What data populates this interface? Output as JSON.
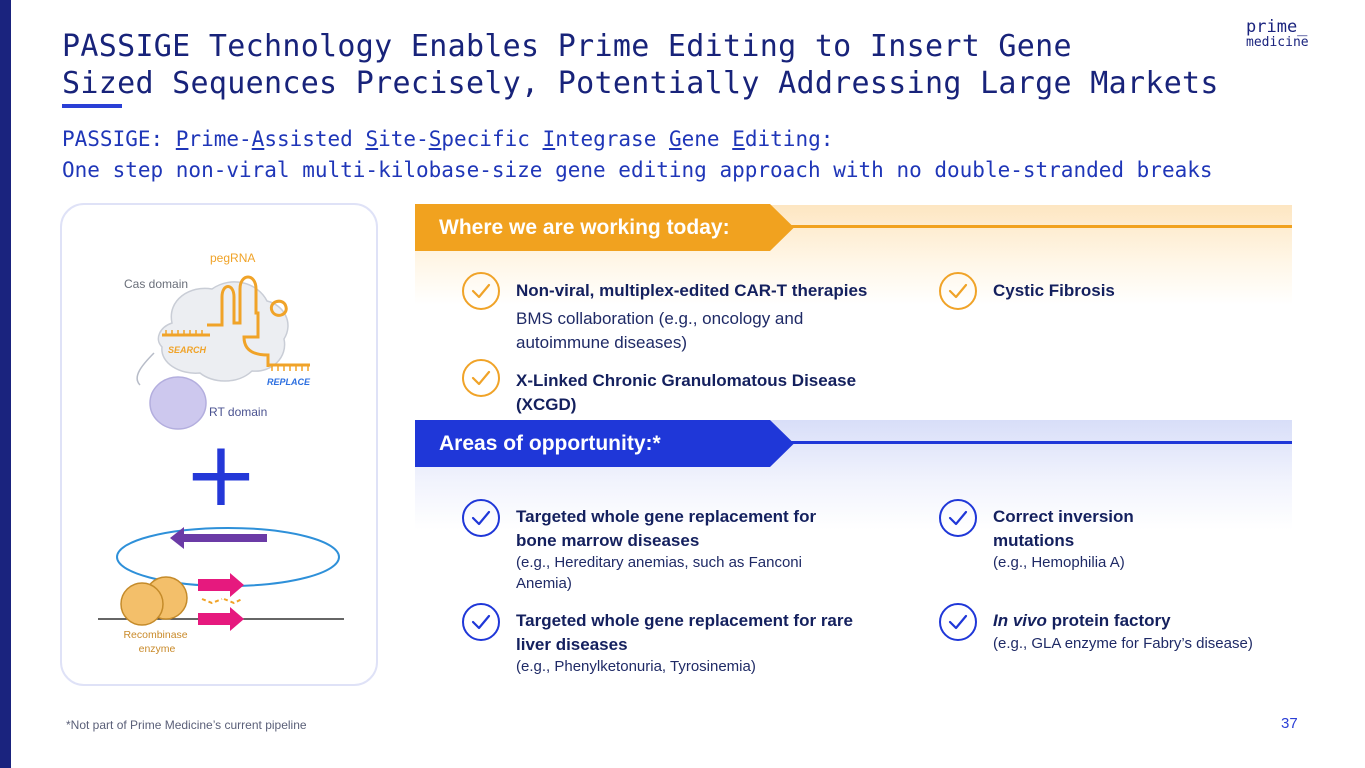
{
  "title": {
    "line1": "PASSIGE Technology Enables Prime Editing to Insert Gene",
    "line2": "Sized Sequences Precisely, Potentially Addressing Large Markets"
  },
  "logo": {
    "line1": "prime_",
    "line2": "medicine"
  },
  "subtitle": {
    "line1_parts": [
      "PASSIGE: ",
      "P",
      "rime-",
      "A",
      "ssisted ",
      "S",
      "ite-",
      "S",
      "pecific ",
      "I",
      "ntegrase ",
      "G",
      "ene ",
      "E",
      "diting:"
    ],
    "line2": "One step non-viral multi-kilobase-size gene editing approach with no double-stranded breaks"
  },
  "diagram": {
    "pegrna_label": "pegRNA",
    "cas_label": "Cas domain",
    "search_label": "SEARCH",
    "replace_label": "REPLACE",
    "rt_label": "RT domain",
    "plus_sign": "+",
    "recombinase_line1": "Recombinase",
    "recombinase_line2": "enzyme"
  },
  "today": {
    "header": "Where we are working today:",
    "items": [
      {
        "title": "Non-viral, multiplex-edited CAR-T therapies",
        "desc_line1": "BMS collaboration (e.g., oncology and",
        "desc_line2": "autoimmune diseases)"
      },
      {
        "title_line1": "X-Linked Chronic Granulomatous Disease",
        "title_line2": "(XCGD)"
      },
      {
        "title": "Cystic Fibrosis"
      }
    ]
  },
  "opportunity": {
    "header": "Areas of opportunity:*",
    "items": [
      {
        "title_line1": "Targeted whole gene replacement for",
        "title_line2": "bone marrow diseases",
        "sub_line1": "(e.g., Hereditary anemias, such as Fanconi",
        "sub_line2": "Anemia)"
      },
      {
        "title_line1": "Targeted whole gene replacement for rare",
        "title_line2": "liver diseases",
        "sub_line1": "(e.g., Phenylketonuria, Tyrosinemia)"
      },
      {
        "title_line1": "Correct inversion",
        "title_line2": "mutations",
        "sub_line1": "(e.g., Hemophilia A)"
      },
      {
        "title_italic": "In vivo",
        "title_rest": " protein factory",
        "sub_line1": "(e.g., GLA enzyme for Fabry’s disease)"
      }
    ]
  },
  "footnote": "*Not part of Prime Medicine’s current pipeline",
  "page_number": "37",
  "colors": {
    "navy": "#1a237e",
    "accent_blue": "#1f37d8",
    "accent_orange": "#f1a21f"
  },
  "icons": [
    "check-circle-icon"
  ]
}
